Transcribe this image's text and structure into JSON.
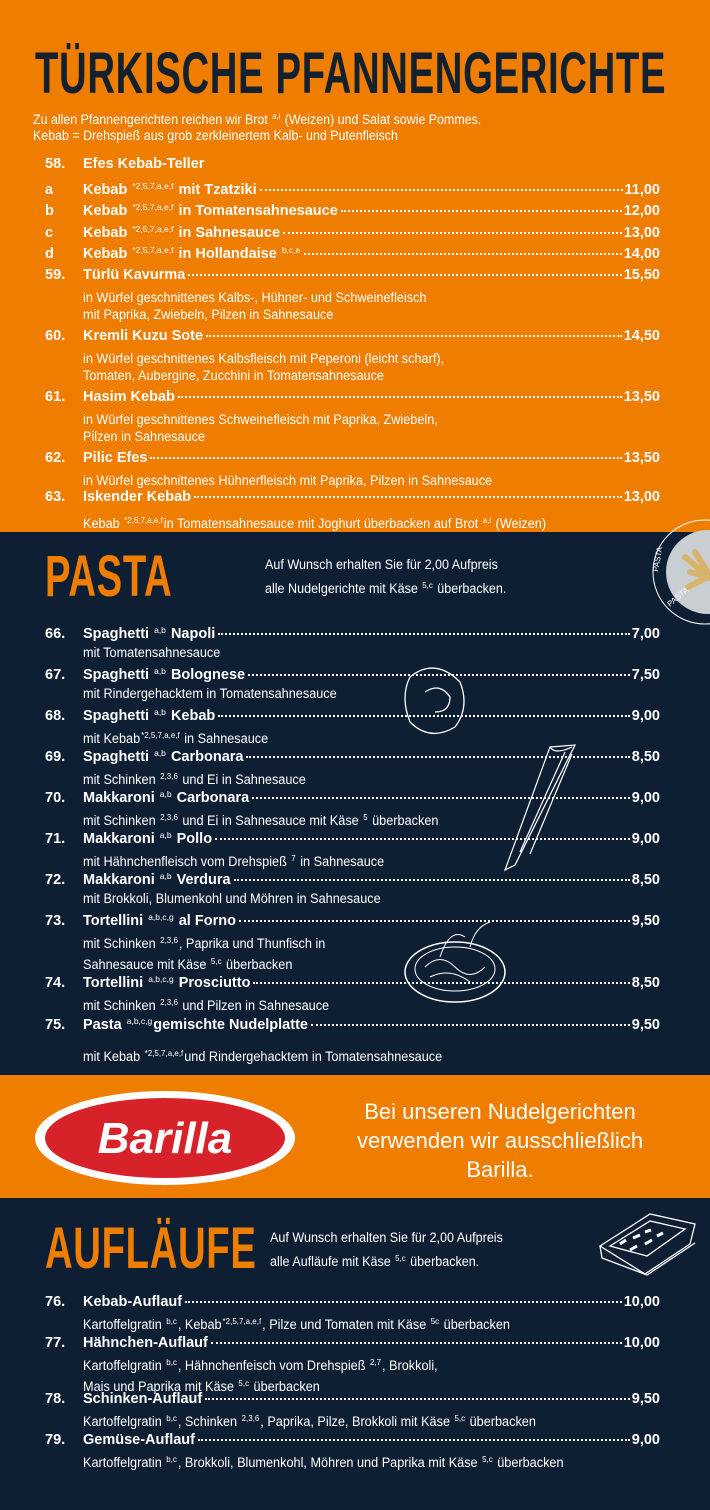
{
  "colors": {
    "orange": "#ef7d00",
    "navy": "#0f1f33",
    "barilla_red": "#d8222a"
  },
  "sections": [
    {
      "id": "s1",
      "title": "TÜRKISCHE PFANNENGERICHTE",
      "intro": [
        "Zu allen Pfannengerichten reichen wir Brot ",
        {
          "sup": "a,i"
        },
        " (Weizen) und Salat sowie Pommes."
      ],
      "intro2": "Kebab = Drehspieß aus grob zerkleinertem Kalb- und Putenfleisch",
      "items": [
        {
          "num": "58.",
          "name": [
            "Efes Kebab-Teller"
          ],
          "price": "",
          "desc": []
        },
        {
          "num": "a",
          "name": [
            "Kebab ",
            {
              "sup": "*2,5,7,a,e,f"
            },
            " mit Tzatziki"
          ],
          "price": "11,00",
          "desc": []
        },
        {
          "num": "b",
          "name": [
            "Kebab ",
            {
              "sup": "*2,5,7,a,e,f"
            },
            " in Tomatensahnesauce"
          ],
          "price": "12,00",
          "desc": []
        },
        {
          "num": "c",
          "name": [
            "Kebab ",
            {
              "sup": "*2,5,7,a,e,f"
            },
            " in Sahnesauce"
          ],
          "price": "13,00",
          "desc": []
        },
        {
          "num": "d",
          "name": [
            "Kebab ",
            {
              "sup": "*2,5,7,a,e,f"
            },
            " in Hollandaise ",
            {
              "sup": "b,c,e"
            }
          ],
          "price": "14,00",
          "desc": []
        },
        {
          "num": "59.",
          "name": [
            "Türlü Kavurma"
          ],
          "price": "15,50",
          "desc": [
            [
              "in Würfel geschnittenes Kalbs-, Hühner- und Schweinefleisch"
            ],
            [
              "mit Paprika, Zwiebeln, Pilzen in Sahnesauce"
            ]
          ]
        },
        {
          "num": "60.",
          "name": [
            "Kremli Kuzu Sote"
          ],
          "price": "14,50",
          "desc": [
            [
              "in Würfel geschnittenes Kalbsfleisch mit Peperoni (leicht scharf),"
            ],
            [
              "Tomaten, Aubergine, Zucchini in Tomatensahnesauce"
            ]
          ]
        },
        {
          "num": "61.",
          "name": [
            "Hasim Kebab"
          ],
          "price": "13,50",
          "desc": [
            [
              "in Würfel geschnittenes Schweinefleisch mit Paprika, Zwiebeln,"
            ],
            [
              "Pilzen in Sahnesauce"
            ]
          ]
        },
        {
          "num": "62.",
          "name": [
            "Pilic Efes"
          ],
          "price": "13,50",
          "desc": [
            [
              "in Würfel geschnittenes Hühnerfleisch mit Paprika, Pilzen in Sahnesauce"
            ]
          ]
        },
        {
          "num": "63.",
          "name": [
            "Iskender Kebab"
          ],
          "price": "13,00",
          "desc": [
            [
              "Kebab ",
              {
                "sup": "*2,5,7,a,e,f"
              },
              "in Tomatensahnesauce mit Joghurt überbacken auf Brot ",
              {
                "sup": "a,i"
              },
              " (Weizen)"
            ]
          ]
        }
      ]
    },
    {
      "id": "s2",
      "title": "PASTA",
      "note": [
        [
          "Auf Wunsch erhalten Sie für 2,00 Aufpreis"
        ],
        [
          "alle Nudelgerichte mit Käse ",
          {
            "sup": "5,c"
          },
          " überbacken."
        ]
      ],
      "plate_label": "PASTA",
      "items": [
        {
          "num": "66.",
          "name": [
            "Spaghetti ",
            {
              "sup": "a,b"
            },
            " Napoli"
          ],
          "price": "7,00",
          "desc": [
            [
              "mit Tomatensahnesauce"
            ]
          ]
        },
        {
          "num": "67.",
          "name": [
            "Spaghetti ",
            {
              "sup": "a,b"
            },
            " Bolognese"
          ],
          "price": "7,50",
          "desc": [
            [
              "mit Rindergehacktem in Tomatensahnesauce"
            ]
          ]
        },
        {
          "num": "68.",
          "name": [
            "Spaghetti ",
            {
              "sup": "a,b"
            },
            " Kebab"
          ],
          "price": "9,00",
          "desc": [
            [
              "mit Kebab",
              {
                "sup": "*2,5,7,a,e,f"
              },
              " in Sahnesauce"
            ]
          ]
        },
        {
          "num": "69.",
          "name": [
            "Spaghetti ",
            {
              "sup": "a,b"
            },
            " Carbonara"
          ],
          "price": "8,50",
          "desc": [
            [
              "mit Schinken ",
              {
                "sup": "2,3,6"
              },
              " und Ei in Sahnesauce"
            ]
          ]
        },
        {
          "num": "70.",
          "name": [
            "Makkaroni ",
            {
              "sup": "a,b"
            },
            " Carbonara"
          ],
          "price": "9,00",
          "desc": [
            [
              "mit Schinken ",
              {
                "sup": "2,3,6"
              },
              " und Ei in Sahnesauce mit Käse ",
              {
                "sup": "5"
              },
              " überbacken"
            ]
          ]
        },
        {
          "num": "71.",
          "name": [
            "Makkaroni ",
            {
              "sup": "a,b"
            },
            " Pollo"
          ],
          "price": "9,00",
          "desc": [
            [
              "mit Hähnchenfleisch vom Drehspieß ",
              {
                "sup": "7"
              },
              " in Sahnesauce"
            ]
          ]
        },
        {
          "num": "72.",
          "name": [
            "Makkaroni ",
            {
              "sup": "a,b"
            },
            " Verdura"
          ],
          "price": "8,50",
          "desc": [
            [
              "mit Brokkoli, Blumenkohl und Möhren in Sahnesauce"
            ]
          ]
        },
        {
          "num": "73.",
          "name": [
            "Tortellini ",
            {
              "sup": "a,b,c,g"
            },
            " al Forno"
          ],
          "price": "9,50",
          "desc": [
            [
              "mit Schinken ",
              {
                "sup": "2,3,6"
              },
              ", Paprika und Thunfisch in"
            ],
            [
              "Sahnesauce mit Käse ",
              {
                "sup": "5,c"
              },
              " überbacken"
            ]
          ]
        },
        {
          "num": "74.",
          "name": [
            "Tortellini ",
            {
              "sup": "a,b,c,g"
            },
            " Prosciutto"
          ],
          "price": "8,50",
          "desc": [
            [
              "mit Schinken ",
              {
                "sup": "2,3,6"
              },
              " und Pilzen in Sahnesauce"
            ]
          ]
        },
        {
          "num": "75.",
          "name": [
            "Pasta ",
            {
              "sup": "a,b,c,g"
            },
            "gemischte Nudelplatte"
          ],
          "price": "9,50",
          "desc": [
            [
              ""
            ],
            [
              "mit Kebab ",
              {
                "sup": "*2,5,7,a,e,f"
              },
              "und Rindergehacktem in Tomatensahnesauce"
            ]
          ]
        }
      ]
    },
    {
      "id": "s4",
      "title": "AUFLÄUFE",
      "note": [
        [
          "Auf Wunsch erhalten Sie für 2,00 Aufpreis"
        ],
        [
          "alle Aufläufe mit Käse ",
          {
            "sup": "5,c"
          },
          " überbacken."
        ]
      ],
      "items": [
        {
          "num": "76.",
          "name": [
            "Kebab-Auflauf"
          ],
          "price": "10,00",
          "desc": [
            [
              "Kartoffelgratin ",
              {
                "sup": "b,c"
              },
              ", Kebab",
              {
                "sup": "*2,5,7,a,e,f"
              },
              ", Pilze und Tomaten mit Käse ",
              {
                "sup": "5c"
              },
              " überbacken"
            ]
          ]
        },
        {
          "num": "77.",
          "name": [
            "Hähnchen-Auflauf"
          ],
          "price": "10,00",
          "desc": [
            [
              "Kartoffelgratin ",
              {
                "sup": "b,c"
              },
              ", Hähnchenfeisch vom Drehspieß ",
              {
                "sup": "2,7"
              },
              ", Brokkoli,"
            ],
            [
              "Mais und Paprika mit Käse ",
              {
                "sup": "5,c"
              },
              " überbacken"
            ]
          ]
        },
        {
          "num": "78.",
          "name": [
            "Schinken-Auflauf"
          ],
          "price": "9,50",
          "desc": [
            [
              "Kartoffelgratin ",
              {
                "sup": "b,c"
              },
              ", Schinken ",
              {
                "sup": "2,3,6"
              },
              ", Paprika, Pilze, Brokkoli mit Käse ",
              {
                "sup": "5,c"
              },
              " überbacken"
            ]
          ]
        },
        {
          "num": "79.",
          "name": [
            "Gemüse-Auflauf"
          ],
          "price": "9,00",
          "desc": [
            [
              "Kartoffelgratin ",
              {
                "sup": "b,c"
              },
              ", Brokkoli, Blumenkohl, Möhren und Paprika mit Käse ",
              {
                "sup": "5,c"
              },
              " überbacken"
            ]
          ]
        }
      ]
    }
  ],
  "barilla": {
    "logo_text": "Barilla",
    "text": [
      "Bei unseren Nudelgerichten",
      "verwenden wir ausschließlich",
      "Barilla."
    ]
  }
}
